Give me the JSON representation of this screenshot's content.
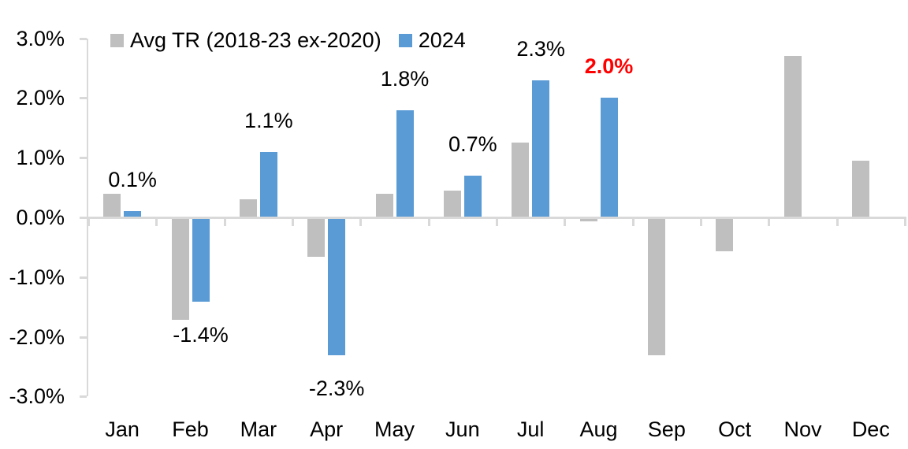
{
  "chart_data": {
    "type": "bar",
    "title": "",
    "categories": [
      "Jan",
      "Feb",
      "Mar",
      "Apr",
      "May",
      "Jun",
      "Jul",
      "Aug",
      "Sep",
      "Oct",
      "Nov",
      "Dec"
    ],
    "series": [
      {
        "name": "Avg TR (2018-23 ex-2020)",
        "color": "#BFBFBF",
        "values": [
          0.4,
          -1.7,
          0.3,
          -0.65,
          0.4,
          0.45,
          1.25,
          -0.05,
          -2.3,
          -0.55,
          2.7,
          0.95
        ]
      },
      {
        "name": "2024",
        "color": "#5B9BD5",
        "values": [
          0.1,
          -1.4,
          1.1,
          -2.3,
          1.8,
          0.7,
          2.3,
          2.0,
          null,
          null,
          null,
          null
        ],
        "point_labels": [
          {
            "text": "0.1%",
            "color": "#000000",
            "bold": false
          },
          {
            "text": "-1.4%",
            "color": "#000000",
            "bold": false
          },
          {
            "text": "1.1%",
            "color": "#000000",
            "bold": false
          },
          {
            "text": "-2.3%",
            "color": "#000000",
            "bold": false
          },
          {
            "text": "1.8%",
            "color": "#000000",
            "bold": false
          },
          {
            "text": "0.7%",
            "color": "#000000",
            "bold": false
          },
          {
            "text": "2.3%",
            "color": "#000000",
            "bold": false
          },
          {
            "text": "2.0%",
            "color": "#FF0000",
            "bold": true
          },
          null,
          null,
          null,
          null
        ]
      }
    ],
    "y_axis": {
      "ticks": [
        {
          "value": 3,
          "label": "3.0%"
        },
        {
          "value": 2,
          "label": "2.0%"
        },
        {
          "value": 1,
          "label": "1.0%"
        },
        {
          "value": 0,
          "label": "0.0%"
        },
        {
          "value": -1,
          "label": "-1.0%"
        },
        {
          "value": -2,
          "label": "-2.0%"
        },
        {
          "value": -3,
          "label": "-3.0%"
        }
      ],
      "min": -3,
      "max": 3
    },
    "axis_color": "#D9D9D9",
    "text_color": "#000000",
    "grid": false,
    "legend_position": "top-left"
  }
}
